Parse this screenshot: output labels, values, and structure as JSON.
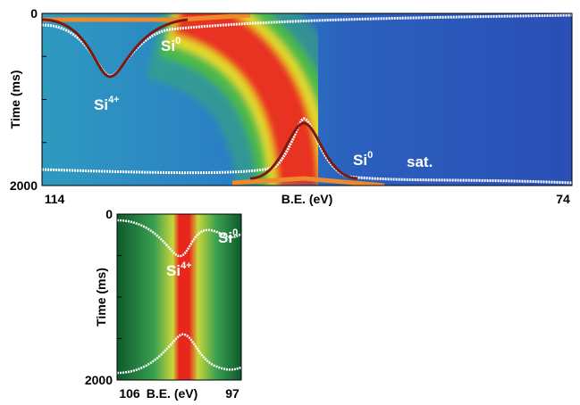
{
  "chart_data": [
    {
      "type": "heatmap",
      "xlabel": "B.E. (eV)",
      "ylabel": "Time (ms)",
      "xlim": [
        114,
        74
      ],
      "ylim": [
        0,
        2000
      ],
      "xticks": [
        114,
        74
      ],
      "yticks": [
        0,
        2000
      ],
      "yminor": [
        500,
        1000,
        1500
      ],
      "annotations": [
        {
          "text": "Si",
          "sup": "0"
        },
        {
          "text": "Si",
          "sup": "4+"
        },
        {
          "text": "Si",
          "sup": "0"
        },
        {
          "text": "sat."
        }
      ]
    },
    {
      "type": "heatmap",
      "xlabel": "B.E. (eV)",
      "ylabel": "Time (ms)",
      "xlim": [
        106,
        97
      ],
      "ylim": [
        0,
        2000
      ],
      "xticks": [
        106,
        97
      ],
      "yticks": [
        0,
        2000
      ],
      "yminor": [
        500,
        1000,
        1500
      ],
      "annotations": [
        {
          "text": "Si",
          "sup": "4+"
        },
        {
          "text": "Si",
          "sup": "0"
        }
      ]
    }
  ]
}
